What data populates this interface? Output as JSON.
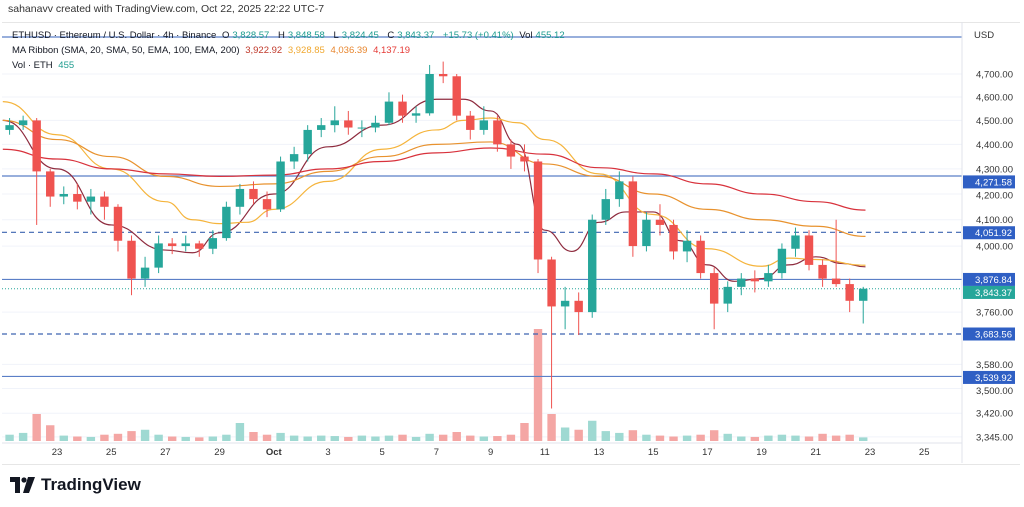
{
  "credit": "sahanavv created with TradingView.com, Oct 22, 2025 22:22 UTC-7",
  "legend": {
    "symbol": "ETHUSD · Ethereum / U.S. Dollar · 4h · Binance",
    "open_label": "O",
    "open": "3,828.57",
    "high_label": "H",
    "high": "3,848.58",
    "low_label": "L",
    "low": "3,824.45",
    "close_label": "C",
    "close": "3,843.37",
    "change": "+15.73 (+0.41%)",
    "vol_label": "Vol",
    "vol": "455.12",
    "ma_title": "MA Ribbon (SMA, 20, SMA, 50, EMA, 100, EMA, 200)",
    "ma_values": [
      "3,922.92",
      "3,928.85",
      "4,036.39",
      "4,137.19"
    ],
    "vol_title": "Vol · ETH",
    "vol_value": "455"
  },
  "colors": {
    "up": "#26a69a",
    "down": "#ef5350",
    "vol_up": "#9fd9d2",
    "vol_down": "#f4a6a4",
    "hline": "#2f5fc4",
    "last": "#26a69a",
    "sma20": "#8e2b3e",
    "sma50": "#f5b43c",
    "ema100": "#e8922e",
    "ema200": "#d8323c"
  },
  "chart_data": {
    "type": "candlestick",
    "title": "",
    "interval": "4h",
    "y_axis_unit": "USD",
    "y_scale": "log",
    "ylim": [
      3345,
      4700
    ],
    "y_ticks": [
      "4,700.00",
      "4,600.00",
      "4,500.00",
      "4,400.00",
      "4,300.00",
      "4,200.00",
      "4,100.00",
      "4,000.00",
      "3,760.00",
      "3,580.00",
      "3,500.00",
      "3,420.00",
      "3,345.00"
    ],
    "y_tick_values": [
      4700,
      4600,
      4500,
      4400,
      4300,
      4200,
      4100,
      4000,
      3760,
      3580,
      3500,
      3420,
      3345
    ],
    "x_ticks": [
      "23",
      "25",
      "27",
      "29",
      "Oct",
      "3",
      "5",
      "7",
      "9",
      "11",
      "13",
      "15",
      "17",
      "19",
      "21",
      "23",
      "25"
    ],
    "x_tick_dates": [
      "2025-09-23",
      "2025-09-25",
      "2025-09-27",
      "2025-09-29",
      "2025-10-01",
      "2025-10-03",
      "2025-10-05",
      "2025-10-07",
      "2025-10-09",
      "2025-10-11",
      "2025-10-13",
      "2025-10-15",
      "2025-10-17",
      "2025-10-19",
      "2025-10-21",
      "2025-10-23",
      "2025-10-25"
    ],
    "start": "2025-09-21T00:00",
    "candle_step_hours": 12,
    "candles_ohlc": [
      [
        4460,
        4510,
        4440,
        4480
      ],
      [
        4480,
        4520,
        4460,
        4500
      ],
      [
        4500,
        4510,
        4080,
        4290
      ],
      [
        4290,
        4300,
        4150,
        4190
      ],
      [
        4190,
        4230,
        4160,
        4200
      ],
      [
        4200,
        4240,
        4140,
        4170
      ],
      [
        4170,
        4220,
        4120,
        4190
      ],
      [
        4190,
        4210,
        4100,
        4150
      ],
      [
        4150,
        4160,
        3980,
        4020
      ],
      [
        4020,
        4040,
        3820,
        3880
      ],
      [
        3880,
        3960,
        3850,
        3920
      ],
      [
        3920,
        4040,
        3900,
        4010
      ],
      [
        4010,
        4030,
        3970,
        4000
      ],
      [
        4000,
        4040,
        3980,
        4010
      ],
      [
        4010,
        4020,
        3960,
        3990
      ],
      [
        3990,
        4060,
        3970,
        4030
      ],
      [
        4030,
        4170,
        4020,
        4150
      ],
      [
        4150,
        4240,
        4120,
        4220
      ],
      [
        4220,
        4250,
        4160,
        4180
      ],
      [
        4180,
        4210,
        4110,
        4140
      ],
      [
        4140,
        4350,
        4130,
        4330
      ],
      [
        4330,
        4390,
        4300,
        4360
      ],
      [
        4360,
        4480,
        4330,
        4460
      ],
      [
        4460,
        4510,
        4430,
        4480
      ],
      [
        4480,
        4560,
        4450,
        4500
      ],
      [
        4500,
        4540,
        4440,
        4470
      ],
      [
        4470,
        4500,
        4430,
        4470
      ],
      [
        4470,
        4520,
        4450,
        4490
      ],
      [
        4490,
        4620,
        4480,
        4580
      ],
      [
        4580,
        4610,
        4490,
        4520
      ],
      [
        4520,
        4560,
        4490,
        4530
      ],
      [
        4530,
        4740,
        4520,
        4700
      ],
      [
        4700,
        4755,
        4660,
        4690
      ],
      [
        4690,
        4700,
        4500,
        4520
      ],
      [
        4520,
        4540,
        4420,
        4460
      ],
      [
        4460,
        4560,
        4440,
        4500
      ],
      [
        4500,
        4520,
        4370,
        4400
      ],
      [
        4400,
        4420,
        4300,
        4350
      ],
      [
        4350,
        4400,
        4290,
        4330
      ],
      [
        4330,
        4340,
        3900,
        3950
      ],
      [
        3950,
        3960,
        3435,
        3780
      ],
      [
        3780,
        3850,
        3700,
        3800
      ],
      [
        3800,
        3830,
        3680,
        3760
      ],
      [
        3760,
        4120,
        3740,
        4100
      ],
      [
        4100,
        4220,
        4080,
        4180
      ],
      [
        4180,
        4290,
        4150,
        4250
      ],
      [
        4250,
        4270,
        3960,
        4000
      ],
      [
        4000,
        4130,
        3980,
        4100
      ],
      [
        4100,
        4160,
        4040,
        4080
      ],
      [
        4080,
        4100,
        3950,
        3980
      ],
      [
        3980,
        4060,
        3940,
        4020
      ],
      [
        4020,
        4040,
        3880,
        3900
      ],
      [
        3900,
        3920,
        3700,
        3790
      ],
      [
        3790,
        3870,
        3760,
        3850
      ],
      [
        3850,
        3900,
        3820,
        3880
      ],
      [
        3880,
        3910,
        3830,
        3870
      ],
      [
        3870,
        3930,
        3850,
        3900
      ],
      [
        3900,
        4010,
        3880,
        3990
      ],
      [
        3990,
        4070,
        3960,
        4040
      ],
      [
        4040,
        4060,
        3910,
        3930
      ],
      [
        3930,
        3950,
        3850,
        3880
      ],
      [
        3880,
        4100,
        3850,
        3860
      ],
      [
        3860,
        3880,
        3760,
        3800
      ],
      [
        3800,
        3850,
        3720,
        3843.37
      ]
    ],
    "volume": [
      14,
      18,
      60,
      35,
      12,
      10,
      9,
      14,
      16,
      22,
      25,
      14,
      10,
      9,
      8,
      10,
      14,
      40,
      20,
      14,
      18,
      12,
      10,
      12,
      11,
      9,
      12,
      10,
      12,
      14,
      9,
      16,
      14,
      20,
      12,
      10,
      11,
      14,
      40,
      250,
      60,
      30,
      25,
      45,
      22,
      18,
      24,
      14,
      12,
      10,
      12,
      14,
      24,
      16,
      10,
      9,
      12,
      14,
      12,
      10,
      16,
      12,
      14,
      8
    ],
    "ma_ribbon": [
      {
        "name": "SMA 20",
        "color_key": "sma20",
        "points": [
          [
            "2025-09-21",
            4500
          ],
          [
            "2025-09-23",
            4300
          ],
          [
            "2025-09-25",
            4080
          ],
          [
            "2025-09-27",
            3985
          ],
          [
            "2025-09-28",
            3975
          ],
          [
            "2025-09-29",
            4050
          ],
          [
            "2025-10-01",
            4200
          ],
          [
            "2025-10-03",
            4390
          ],
          [
            "2025-10-05",
            4480
          ],
          [
            "2025-10-07",
            4590
          ],
          [
            "2025-10-08",
            4590
          ],
          [
            "2025-10-09",
            4540
          ],
          [
            "2025-10-10",
            4400
          ],
          [
            "2025-10-11",
            4060
          ],
          [
            "2025-10-12",
            3980
          ],
          [
            "2025-10-13",
            4090
          ],
          [
            "2025-10-14",
            4130
          ],
          [
            "2025-10-15",
            4130
          ],
          [
            "2025-10-16",
            4020
          ],
          [
            "2025-10-17",
            3930
          ],
          [
            "2025-10-18",
            3870
          ],
          [
            "2025-10-19",
            3880
          ],
          [
            "2025-10-20",
            3930
          ],
          [
            "2025-10-21",
            3960
          ],
          [
            "2025-10-22",
            3935
          ],
          [
            "2025-10-22T20:00",
            3922.92
          ]
        ]
      },
      {
        "name": "SMA 50",
        "color_key": "sma50",
        "points": [
          [
            "2025-09-21",
            4580
          ],
          [
            "2025-09-23",
            4440
          ],
          [
            "2025-09-25",
            4300
          ],
          [
            "2025-09-27",
            4170
          ],
          [
            "2025-09-28",
            4100
          ],
          [
            "2025-09-29",
            4085
          ],
          [
            "2025-09-30",
            4090
          ],
          [
            "2025-10-01",
            4140
          ],
          [
            "2025-10-03",
            4250
          ],
          [
            "2025-10-05",
            4380
          ],
          [
            "2025-10-07",
            4460
          ],
          [
            "2025-10-08",
            4500
          ],
          [
            "2025-10-09",
            4510
          ],
          [
            "2025-10-10",
            4490
          ],
          [
            "2025-10-11",
            4420
          ],
          [
            "2025-10-13",
            4280
          ],
          [
            "2025-10-15",
            4120
          ],
          [
            "2025-10-17",
            3990
          ],
          [
            "2025-10-19",
            3925
          ],
          [
            "2025-10-20",
            3955
          ],
          [
            "2025-10-21",
            3950
          ],
          [
            "2025-10-22T20:00",
            3928.85
          ]
        ]
      },
      {
        "name": "EMA 100",
        "color_key": "ema100",
        "points": [
          [
            "2025-09-21",
            4500
          ],
          [
            "2025-09-23",
            4420
          ],
          [
            "2025-09-25",
            4350
          ],
          [
            "2025-09-27",
            4270
          ],
          [
            "2025-09-29",
            4230
          ],
          [
            "2025-10-01",
            4240
          ],
          [
            "2025-10-03",
            4290
          ],
          [
            "2025-10-05",
            4350
          ],
          [
            "2025-10-07",
            4400
          ],
          [
            "2025-10-09",
            4410
          ],
          [
            "2025-10-11",
            4320
          ],
          [
            "2025-10-13",
            4270
          ],
          [
            "2025-10-15",
            4200
          ],
          [
            "2025-10-17",
            4140
          ],
          [
            "2025-10-19",
            4100
          ],
          [
            "2025-10-21",
            4075
          ],
          [
            "2025-10-22T20:00",
            4036.39
          ]
        ]
      },
      {
        "name": "EMA 200",
        "color_key": "ema200",
        "points": [
          [
            "2025-09-21",
            4380
          ],
          [
            "2025-09-23",
            4340
          ],
          [
            "2025-09-25",
            4300
          ],
          [
            "2025-09-27",
            4280
          ],
          [
            "2025-09-29",
            4270
          ],
          [
            "2025-10-01",
            4275
          ],
          [
            "2025-10-03",
            4300
          ],
          [
            "2025-10-05",
            4330
          ],
          [
            "2025-10-07",
            4365
          ],
          [
            "2025-10-09",
            4385
          ],
          [
            "2025-10-11",
            4360
          ],
          [
            "2025-10-13",
            4305
          ],
          [
            "2025-10-15",
            4280
          ],
          [
            "2025-10-17",
            4240
          ],
          [
            "2025-10-19",
            4200
          ],
          [
            "2025-10-21",
            4170
          ],
          [
            "2025-10-22T20:00",
            4137.19
          ]
        ]
      }
    ],
    "horizontal_lines": [
      {
        "price": 4866,
        "label": null,
        "style": "solid"
      },
      {
        "price": 4271.58,
        "label": "4,271.58",
        "style": "solid"
      },
      {
        "price": 4051.92,
        "label": "4,051.92",
        "style": "dashed"
      },
      {
        "price": 3876.84,
        "label": "3,876.84",
        "style": "solid"
      },
      {
        "price": 3683.56,
        "label": "3,683.56",
        "style": "dashed"
      },
      {
        "price": 3539.92,
        "label": "3,539.92",
        "style": "solid"
      }
    ],
    "last_price": {
      "price": 3843.37,
      "label": "3,843.37"
    }
  },
  "brand": "TradingView"
}
